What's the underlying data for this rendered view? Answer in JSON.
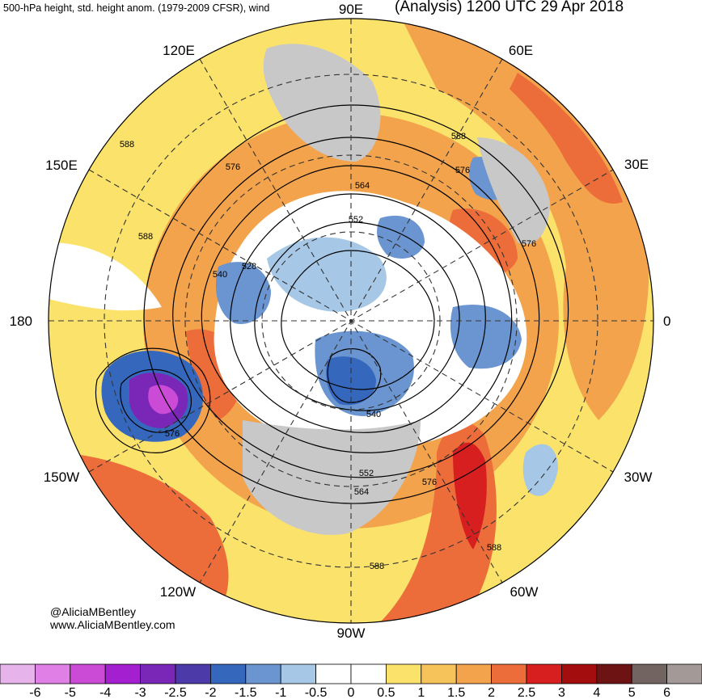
{
  "header": {
    "left_title": "500-hPa height, std. height anom. (1979-2009 CFSR), wind",
    "right_title": "(Analysis) 1200 UTC 29 Apr 2018"
  },
  "credits": {
    "handle": "@AliciaMBentley",
    "website": "www.AliciaMBentley.com"
  },
  "map": {
    "projection": "north-polar-stereographic",
    "longitude_labels": [
      "90E",
      "60E",
      "30E",
      "0",
      "30W",
      "60W",
      "90W",
      "120W",
      "150W",
      "180",
      "150E",
      "120E"
    ],
    "contour_labels": [
      "588",
      "588",
      "576",
      "564",
      "552",
      "540",
      "528",
      "576",
      "588",
      "576",
      "540",
      "552",
      "564",
      "576",
      "588",
      "588",
      "576"
    ],
    "colors": {
      "land_outline": "#4a4a4a",
      "contour": "#000000",
      "graticule": "#333333"
    }
  },
  "colorbar": {
    "ticks": [
      "-6",
      "-5",
      "-4",
      "-3",
      "-2.5",
      "-2",
      "-1.5",
      "-1",
      "-0.5",
      "0",
      "0.5",
      "1",
      "1.5",
      "2",
      "2.5",
      "3",
      "4",
      "5",
      "6"
    ],
    "colors": [
      "#e6b3ea",
      "#e07fe6",
      "#cc4bd6",
      "#a31fd0",
      "#7a27b8",
      "#4b3aa8",
      "#3568bd",
      "#6a95d0",
      "#a6c8e6",
      "#ffffff",
      "#ffffff",
      "#fbe36b",
      "#f6c25a",
      "#f3a34b",
      "#ec6d3a",
      "#d81f1f",
      "#a30d0d",
      "#6e1313",
      "#716461",
      "#a39a98"
    ]
  }
}
